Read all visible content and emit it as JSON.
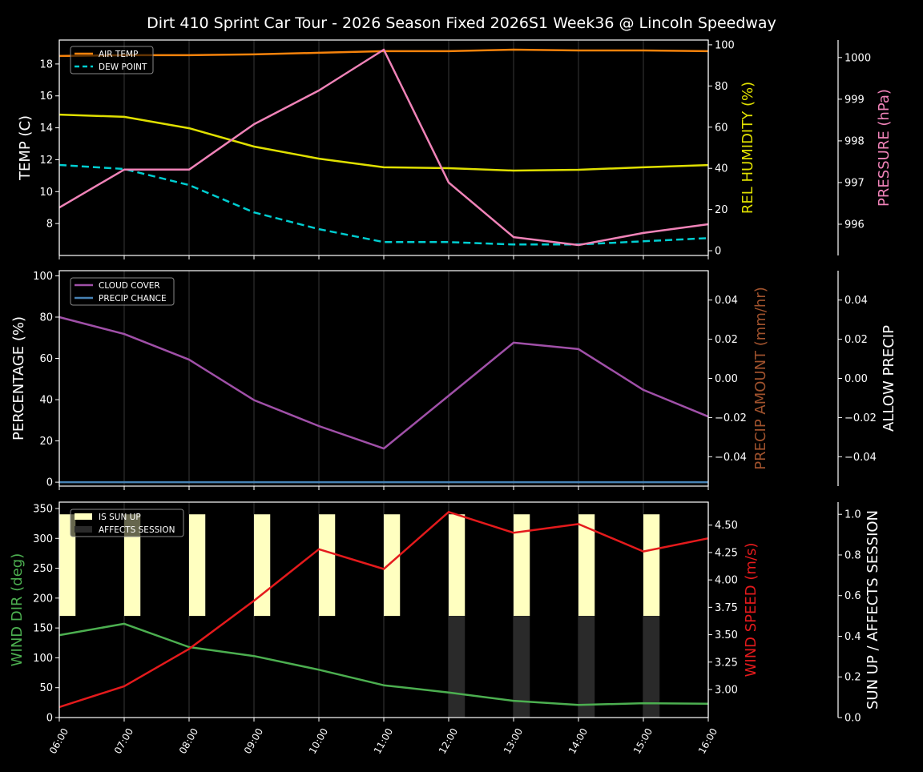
{
  "title": "Dirt 410 Sprint Car Tour - 2026 Season Fixed 2026S1 Week36 @ Lincoln Speedway",
  "chart_data": [
    {
      "type": "line",
      "panel": "top",
      "x": [
        "06:00",
        "07:00",
        "08:00",
        "09:00",
        "10:00",
        "11:00",
        "12:00",
        "13:00",
        "14:00",
        "15:00",
        "16:00"
      ],
      "grid": "vertical",
      "legend": "upper-left",
      "axes": {
        "left": {
          "label": "TEMP (C)",
          "label_color": "#ffffff",
          "ylim": [
            6.0,
            19.5
          ],
          "ticks": [
            8,
            10,
            12,
            14,
            16,
            18
          ]
        },
        "right": {
          "label": "REL HUMIDITY (%)",
          "label_color": "#e0e000",
          "ylim": [
            -2.3,
            102.3
          ],
          "ticks": [
            0,
            20,
            40,
            60,
            80,
            100
          ]
        },
        "right2": {
          "label": "PRESSURE (hPa)",
          "label_color": "#f083b8",
          "ylim": [
            995.25,
            1000.42
          ],
          "ticks": [
            996,
            997,
            998,
            999,
            1000
          ]
        }
      },
      "series": [
        {
          "name": "AIR TEMP",
          "axis": "left",
          "color": "#f5820b",
          "dash": false,
          "in_legend": true,
          "values": [
            18.5,
            18.55,
            18.55,
            18.6,
            18.7,
            18.8,
            18.8,
            18.9,
            18.85,
            18.85,
            18.8
          ]
        },
        {
          "name": "DEW POINT",
          "axis": "left",
          "color": "#00ced1",
          "dash": true,
          "in_legend": true,
          "values": [
            11.67,
            11.42,
            10.41,
            8.7,
            7.65,
            6.84,
            6.84,
            6.69,
            6.69,
            6.89,
            7.09
          ]
        },
        {
          "axis": "right",
          "color": "#e0e000",
          "dash": false,
          "in_legend": false,
          "values": [
            66.1,
            65.0,
            59.5,
            50.6,
            44.7,
            40.5,
            40.1,
            38.9,
            39.3,
            40.5,
            41.6
          ]
        },
        {
          "axis": "right2",
          "color": "#f083b8",
          "dash": false,
          "in_legend": false,
          "values": [
            996.4,
            997.31,
            997.31,
            998.4,
            999.21,
            1000.19,
            997.0,
            995.69,
            995.5,
            995.79,
            996.0
          ]
        }
      ]
    },
    {
      "type": "line",
      "panel": "middle",
      "x": [
        "06:00",
        "07:00",
        "08:00",
        "09:00",
        "10:00",
        "11:00",
        "12:00",
        "13:00",
        "14:00",
        "15:00",
        "16:00"
      ],
      "grid": "vertical",
      "legend": "upper-left",
      "axes": {
        "left": {
          "label": "PERCENTAGE (%)",
          "label_color": "#ffffff",
          "ylim": [
            -1.9,
            102.5
          ],
          "ticks": [
            0,
            20,
            40,
            60,
            80,
            100
          ]
        },
        "right": {
          "label": "PRECIP AMOUNT (mm/hr)",
          "label_color": "#a0522d",
          "ylim": [
            -0.055,
            0.055
          ],
          "ticks": [
            "−0.04",
            "−0.02",
            "0.00",
            "0.02",
            "0.04"
          ],
          "tick_values": [
            -0.04,
            -0.02,
            0,
            0.02,
            0.04
          ]
        },
        "right2": {
          "label": "ALLOW PRECIP",
          "label_color": "#ffffff",
          "ylim": [
            -0.055,
            0.055
          ],
          "ticks": [
            "−0.04",
            "−0.02",
            "0.00",
            "0.02",
            "0.04"
          ],
          "tick_values": [
            -0.04,
            -0.02,
            0,
            0.02,
            0.04
          ]
        }
      },
      "series": [
        {
          "name": "CLOUD COVER",
          "axis": "left",
          "color": "#a050a8",
          "dash": false,
          "in_legend": true,
          "values": [
            80,
            71.8,
            59.4,
            39.8,
            27.2,
            16.3,
            41.9,
            67.6,
            64.5,
            44.7,
            31.8
          ]
        },
        {
          "name": "PRECIP CHANCE",
          "axis": "left",
          "color": "#4682b4",
          "dash": false,
          "in_legend": true,
          "values": [
            0,
            0,
            0,
            0,
            0,
            0,
            0,
            0,
            0,
            0,
            0
          ]
        }
      ]
    },
    {
      "type": "line",
      "panel": "bottom",
      "x": [
        "06:00",
        "07:00",
        "08:00",
        "09:00",
        "10:00",
        "11:00",
        "12:00",
        "13:00",
        "14:00",
        "15:00",
        "16:00"
      ],
      "grid": "vertical",
      "legend": "upper-left",
      "axes": {
        "left": {
          "label": "WIND DIR (deg)",
          "label_color": "#4caf50",
          "ylim": [
            0,
            360.7
          ],
          "ticks": [
            0,
            50,
            100,
            150,
            200,
            250,
            300,
            350
          ]
        },
        "right": {
          "label": "WIND SPEED (m/s)",
          "label_color": "#e41a1c",
          "ylim": [
            2.744,
            4.71
          ],
          "ticks": [
            "3.00",
            "3.25",
            "3.50",
            "3.75",
            "4.00",
            "4.25",
            "4.50"
          ],
          "tick_values": [
            3,
            3.25,
            3.5,
            3.75,
            4,
            4.25,
            4.5
          ]
        },
        "right2": {
          "label": "SUN UP / AFFECTS SESSION",
          "label_color": "#ffffff",
          "ylim": [
            0,
            1.06
          ],
          "ticks": [
            "0.0",
            "0.2",
            "0.4",
            "0.6",
            "0.8",
            "1.0"
          ],
          "tick_values": [
            0,
            0.2,
            0.4,
            0.6,
            0.8,
            1.0
          ]
        }
      },
      "bars": [
        {
          "name": "IS SUN UP",
          "color": "#ffffc0",
          "range": [
            0.5,
            1.0
          ],
          "values": [
            1,
            1,
            1,
            1,
            1,
            1,
            1,
            1,
            1,
            1,
            0
          ]
        },
        {
          "name": "AFFECTS SESSION",
          "color": "#2a2a2a",
          "range": [
            0,
            0.5
          ],
          "values": [
            0,
            0,
            0,
            0,
            0,
            0,
            1,
            1,
            1,
            1,
            0
          ]
        }
      ],
      "series": [
        {
          "axis": "left",
          "color": "#4caf50",
          "dash": false,
          "in_legend": false,
          "values": [
            138,
            157,
            118,
            103,
            80,
            54,
            42,
            28,
            21,
            24,
            23
          ]
        },
        {
          "axis": "right",
          "color": "#e41a1c",
          "dash": false,
          "in_legend": false,
          "values": [
            2.84,
            3.03,
            3.37,
            3.81,
            4.28,
            4.1,
            4.62,
            4.43,
            4.51,
            4.26,
            4.38
          ]
        }
      ]
    }
  ]
}
